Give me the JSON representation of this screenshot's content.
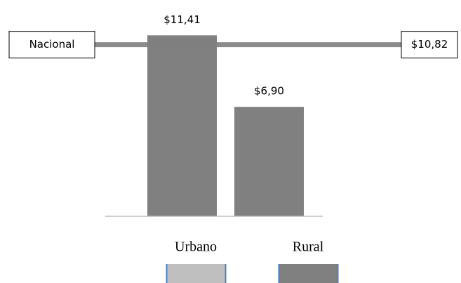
{
  "chart_data": {
    "type": "bar",
    "categories": [
      "Urbano",
      "Rural"
    ],
    "values": [
      11.41,
      6.9
    ],
    "value_labels": [
      "$11,41",
      "$6,90"
    ],
    "color": "#808080",
    "legend_colors": [
      "#bfbfbf",
      "#808080"
    ],
    "ylim": [
      0,
      12
    ],
    "reference_line": {
      "label": "Nacional",
      "value": 10.82,
      "value_label": "$10,82",
      "color": "#7f7f7f"
    }
  }
}
